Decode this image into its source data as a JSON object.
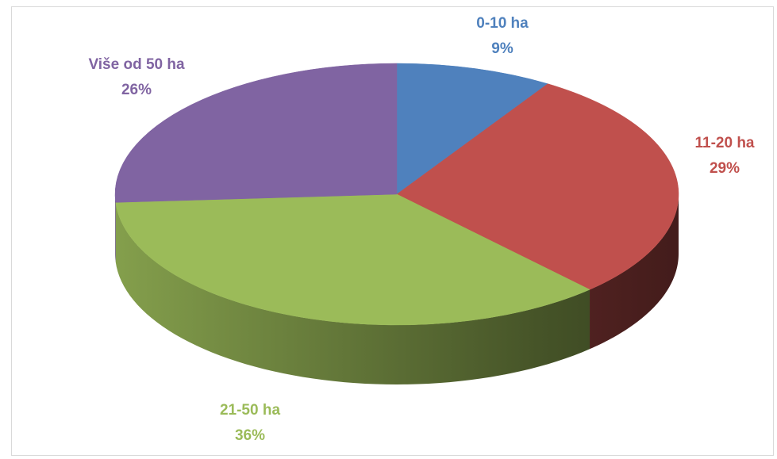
{
  "chart_data": {
    "type": "pie",
    "categories": [
      "0-10 ha",
      "11-20 ha",
      "21-50 ha",
      "Više od 50 ha"
    ],
    "values": [
      9,
      29,
      36,
      26
    ],
    "value_labels": [
      "9%",
      "29%",
      "36%",
      "26%"
    ],
    "colors": [
      "#4f81bd",
      "#c0504d",
      "#9bbb59",
      "#8064a2"
    ]
  }
}
